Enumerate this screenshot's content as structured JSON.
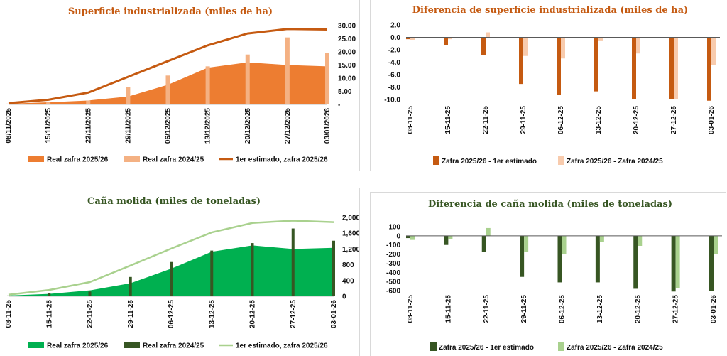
{
  "chart_data": [
    {
      "id": "c1",
      "type": "area",
      "title": "Superficie industrializada (miles de ha)",
      "categories": [
        "08/11/2025",
        "15/11/2025",
        "22/11/2025",
        "29/11/2025",
        "06/12/2025",
        "13/12/2025",
        "20/12/2025",
        "27/12/2025",
        "03/01/2026"
      ],
      "yticks": [
        "30.00",
        "25.00",
        "20.00",
        "15.00",
        "10.00",
        "5.00",
        "-"
      ],
      "ylim": [
        0,
        30
      ],
      "y_axis_position": "right",
      "series": [
        {
          "name": "Real zafra 2025/26",
          "kind": "area",
          "color": "#ED7D31",
          "values": [
            0.3,
            0.8,
            1.5,
            3.0,
            7.5,
            14.0,
            16.0,
            15.0,
            14.5
          ]
        },
        {
          "name": "Real zafra 2024/25",
          "kind": "bar",
          "color": "#F4B183",
          "values": [
            0.3,
            0.8,
            1.5,
            6.5,
            11.0,
            14.5,
            19.0,
            25.5,
            19.5
          ]
        },
        {
          "name": "1er estimado, zafra 2025/26",
          "kind": "line",
          "color": "#C55A11",
          "values": [
            0.5,
            1.8,
            4.5,
            10.5,
            16.5,
            22.5,
            27.0,
            28.7,
            28.5
          ]
        }
      ],
      "legend_position": "bottom",
      "grid": false
    },
    {
      "id": "c2",
      "type": "bar",
      "title": "Diferencia de superficie industrializada (miles de ha)",
      "categories": [
        "08-11-25",
        "15-11-25",
        "22-11-25",
        "29-11-25",
        "06-12-25",
        "13-12-25",
        "20-12-25",
        "27-12-25",
        "03-01-26"
      ],
      "yticks": [
        "2.0",
        "0.0",
        "-2.0",
        "-4.0",
        "-6.0",
        "-8.0",
        "-10.0"
      ],
      "ylim": [
        -10,
        2
      ],
      "y_axis_position": "left",
      "series": [
        {
          "name": "Zafra 2025/26 - 1er estimado",
          "color": "#C55A11",
          "values": [
            -0.3,
            -1.3,
            -2.8,
            -7.5,
            -9.2,
            -8.7,
            -10.0,
            -9.9,
            -10.2
          ]
        },
        {
          "name": "Zafra 2025/26 - Zafra 2024/25",
          "color": "#F8CBAD",
          "values": [
            -0.4,
            -0.3,
            0.8,
            -3.0,
            -3.4,
            -0.5,
            -2.6,
            -10.0,
            -4.5
          ]
        }
      ],
      "legend_position": "bottom",
      "grid": false
    },
    {
      "id": "c3",
      "type": "area",
      "title": "Caña molida (miles de toneladas)",
      "categories": [
        "08-11-25",
        "15-11-25",
        "22-11-25",
        "29-11-25",
        "06-12-25",
        "13-12-25",
        "20-12-25",
        "27-12-25",
        "03-01-26"
      ],
      "yticks": [
        "2,000",
        "1,600",
        "1,200",
        "800",
        "400",
        "0"
      ],
      "ylim": [
        0,
        2000
      ],
      "y_axis_position": "right",
      "series": [
        {
          "name": "Real zafra 2025/26",
          "kind": "area",
          "color": "#00B050",
          "values": [
            20,
            60,
            150,
            330,
            700,
            1130,
            1290,
            1200,
            1230
          ]
        },
        {
          "name": "Real zafra 2024/25",
          "kind": "bar",
          "color": "#375623",
          "values": [
            20,
            90,
            120,
            490,
            870,
            1160,
            1350,
            1720,
            1410
          ]
        },
        {
          "name": "1er estimado, zafra 2025/26",
          "kind": "line",
          "color": "#A9D18E",
          "values": [
            40,
            160,
            360,
            780,
            1210,
            1620,
            1860,
            1920,
            1880
          ]
        }
      ],
      "legend_position": "bottom",
      "grid": false
    },
    {
      "id": "c4",
      "type": "bar",
      "title": "Diferencia de caña molida (miles de toneladas)",
      "categories": [
        "08-11-25",
        "15-11-25",
        "22-11-25",
        "29-11-25",
        "06-12-25",
        "13-12-25",
        "20-12-25",
        "27-12-25",
        "03-01-26"
      ],
      "yticks": [
        "100",
        "0",
        "-100",
        "-200",
        "-300",
        "-400",
        "-500",
        "-600"
      ],
      "ylim": [
        -600,
        100
      ],
      "y_axis_position": "left",
      "series": [
        {
          "name": "Zafra 2025/26 - 1er estimado",
          "color": "#375623",
          "values": [
            -25,
            -100,
            -180,
            -450,
            -510,
            -510,
            -580,
            -610,
            -600
          ]
        },
        {
          "name": "Zafra 2025/26 - Zafra 2024/25",
          "color": "#A9D18E",
          "values": [
            -45,
            -35,
            85,
            -180,
            -200,
            -65,
            -110,
            -570,
            -200
          ]
        }
      ],
      "legend_position": "bottom",
      "grid": false
    }
  ]
}
